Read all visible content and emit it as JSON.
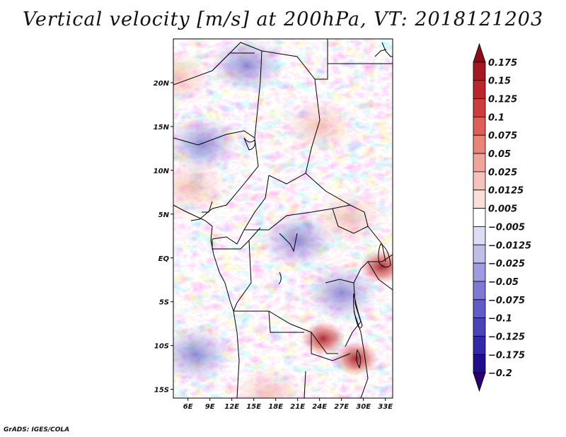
{
  "title": "Vertical velocity [m/s] at 200hPa, VT: 2018121203",
  "credit": "GrADS: IGES/COLA",
  "chart_data": {
    "type": "heatmap",
    "title": "Vertical velocity [m/s] at 200hPa, VT: 2018121203",
    "variable": "Vertical velocity",
    "units": "m/s",
    "level": "200hPa",
    "valid_time": "2018121203",
    "x_axis": {
      "type": "longitude",
      "range": [
        4,
        34
      ],
      "ticks": [
        6,
        9,
        12,
        15,
        18,
        21,
        24,
        27,
        30,
        33
      ],
      "tick_labels": [
        "6E",
        "9E",
        "12E",
        "15E",
        "18E",
        "21E",
        "24E",
        "27E",
        "30E",
        "33E"
      ]
    },
    "y_axis": {
      "type": "latitude",
      "range": [
        -16,
        25
      ],
      "ticks": [
        20,
        15,
        10,
        5,
        0,
        -5,
        -10,
        -15
      ],
      "tick_labels": [
        "20N",
        "15N",
        "10N",
        "5N",
        "EQ",
        "5S",
        "10S",
        "15S"
      ]
    },
    "colorbar": {
      "levels": [
        0.175,
        0.15,
        0.125,
        0.1,
        0.075,
        0.05,
        0.025,
        0.0125,
        0.005,
        -0.005,
        -0.0125,
        -0.025,
        -0.05,
        -0.075,
        -0.1,
        -0.125,
        -0.175,
        -0.2
      ],
      "labels": [
        "0.175",
        "0.15",
        "0.125",
        "0.1",
        "0.075",
        "0.05",
        "0.025",
        "0.0125",
        "0.005",
        "−0.005",
        "−0.0125",
        "−0.025",
        "−0.05",
        "−0.075",
        "−0.1",
        "−0.125",
        "−0.175",
        "−0.2"
      ],
      "colors": [
        "#8b0d18",
        "#a41820",
        "#bb262b",
        "#cf3c3c",
        "#df5e58",
        "#e98479",
        "#f0a59a",
        "#f5c3b9",
        "#fadfd8",
        "#ffffff",
        "#dcdcf2",
        "#bfbdea",
        "#9f9be0",
        "#7f78d4",
        "#625cc6",
        "#4a44b8",
        "#3328a8",
        "#200e8c",
        "#2a0070"
      ]
    },
    "field_features": [
      {
        "description": "strong ascent maximum",
        "lon": 24.5,
        "lat": -9.2,
        "sign": "positive"
      },
      {
        "description": "ascent maximum",
        "lon": 29,
        "lat": -11.5,
        "sign": "positive"
      },
      {
        "description": "ascent maximum",
        "lon": 32.5,
        "lat": -1,
        "sign": "positive"
      },
      {
        "description": "ascent band",
        "lon": 17,
        "lat": -15.5,
        "sign": "positive"
      },
      {
        "description": "ascent band",
        "lon": 28,
        "lat": 4.5,
        "sign": "positive"
      },
      {
        "description": "ascent patch",
        "lon": 4.5,
        "lat": 20.5,
        "sign": "positive"
      },
      {
        "description": "broad ascent region",
        "lon": 6.5,
        "lat": 8,
        "sign": "positive"
      },
      {
        "description": "broad ascent region",
        "lon": 24,
        "lat": 15,
        "sign": "positive"
      },
      {
        "description": "broad descent region",
        "lon": 8,
        "lat": 13,
        "sign": "negative"
      },
      {
        "description": "broad descent region",
        "lon": 21,
        "lat": 2,
        "sign": "negative"
      },
      {
        "description": "broad descent region",
        "lon": 14,
        "lat": 22,
        "sign": "negative"
      },
      {
        "description": "broad descent region",
        "lon": 27,
        "lat": -4,
        "sign": "negative"
      },
      {
        "description": "descent region",
        "lon": 7,
        "lat": -11,
        "sign": "negative"
      }
    ],
    "grid": false,
    "legend": "right colorbar"
  }
}
